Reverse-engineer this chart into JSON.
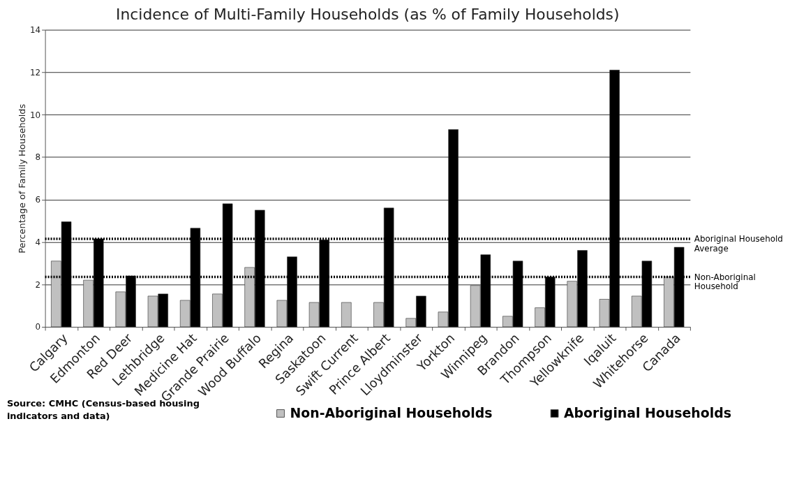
{
  "chart_data": {
    "type": "bar",
    "title": "Incidence of Multi-Family Households (as % of Family Households)",
    "ylabel": "Percentage of Family Households",
    "categories": [
      "Calgary",
      "Edmonton",
      "Red Deer",
      "Lethbridge",
      "Medicine Hat",
      "Grande Prairie",
      "Wood Buffalo",
      "Regina",
      "Saskatoon",
      "Swift Current",
      "Prince Albert",
      "Lloydminster",
      "Yorkton",
      "Winnipeg",
      "Brandon",
      "Thompson",
      "Yellowknife",
      "Iqaluit",
      "Whitehorse",
      "Canada"
    ],
    "series": [
      {
        "name": "Non-Aboriginal Households",
        "color": "#c0c0c0",
        "values": [
          3.1,
          2.2,
          1.65,
          1.45,
          1.25,
          1.55,
          2.8,
          1.25,
          1.15,
          1.15,
          1.15,
          0.4,
          0.7,
          1.95,
          0.5,
          0.9,
          2.15,
          1.3,
          1.45,
          2.35
        ]
      },
      {
        "name": "Aboriginal Households",
        "color": "#000000",
        "values": [
          4.95,
          4.15,
          2.4,
          1.55,
          4.65,
          5.8,
          5.5,
          3.3,
          4.1,
          null,
          5.6,
          1.45,
          9.3,
          3.4,
          3.1,
          2.35,
          3.6,
          12.1,
          3.1,
          3.75
        ]
      }
    ],
    "ylim": [
      0,
      14
    ],
    "yticks": [
      0,
      2,
      4,
      6,
      8,
      10,
      12,
      14
    ],
    "grid": "y",
    "legend": "bottom",
    "ref_lines": [
      {
        "axis": "y",
        "value": 4.15,
        "label": "Aboriginal Household Average",
        "line_style": "dotted",
        "color": "#000000"
      },
      {
        "axis": "y",
        "value": 2.35,
        "label": "Non-Aboriginal Household",
        "line_style": "dotted",
        "color": "#000000"
      }
    ],
    "annotations": [
      "Source: CMHC (Census-based housing indicators and data)"
    ]
  }
}
